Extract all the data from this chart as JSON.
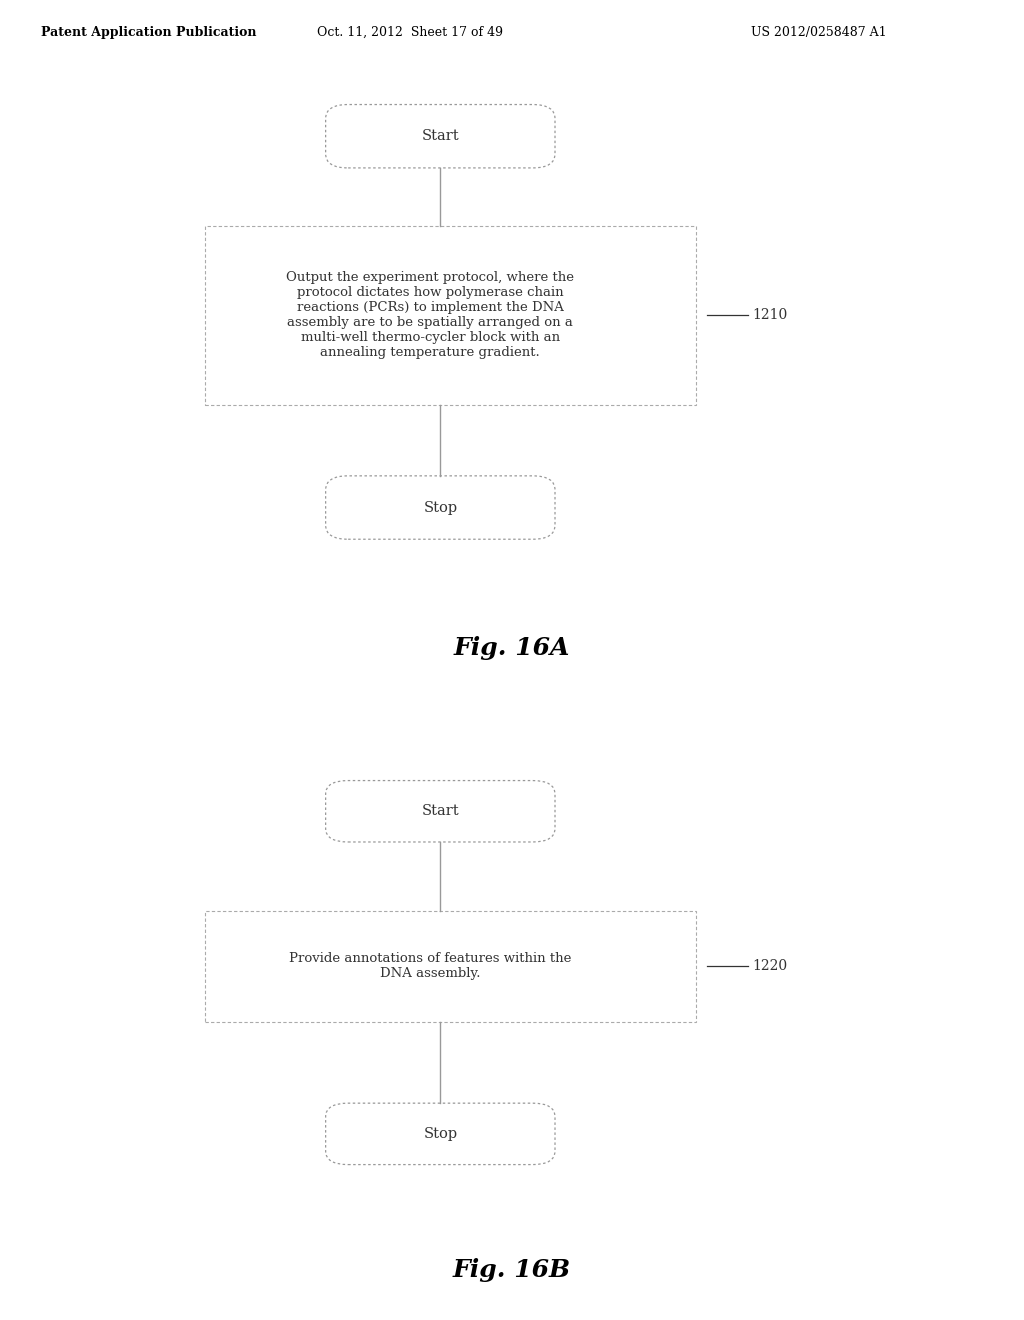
{
  "bg_color": "#ffffff",
  "header_text": "Patent Application Publication",
  "header_date": "Oct. 11, 2012  Sheet 17 of 49",
  "header_patent": "US 2012/0258487 A1",
  "fig_a_label": "Fig. 16A",
  "fig_b_label": "Fig. 16B",
  "diagram_a": {
    "start_label": "Start",
    "stop_label": "Stop",
    "box_text": "Output the experiment protocol, where the\nprotocol dictates how polymerase chain\nreactions (PCRs) to implement the DNA\nassembly are to be spatially arranged on a\nmulti-well thermo-cycler block with an\nannealing temperature gradient.",
    "box_label": "1210"
  },
  "diagram_b": {
    "start_label": "Start",
    "stop_label": "Stop",
    "box_text": "Provide annotations of features within the\nDNA assembly.",
    "box_label": "1220"
  },
  "line_color": "#999999",
  "box_edge_color": "#aaaaaa",
  "text_color": "#333333",
  "header_color": "#000000",
  "fig_label_color": "#000000",
  "font_size_body": 9.5,
  "font_size_terminal": 10.5,
  "font_size_label": 10,
  "font_size_fig": 18,
  "font_size_header": 9
}
